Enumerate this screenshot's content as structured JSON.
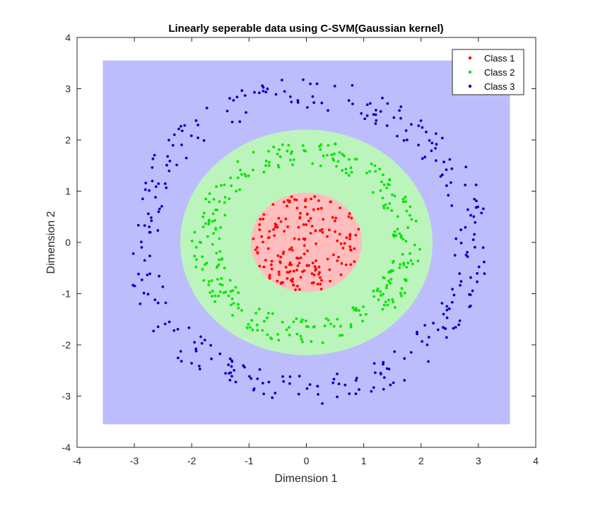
{
  "chart_data": {
    "type": "scatter",
    "title": "Linearly seperable data using C-SVM(Gaussian kernel)",
    "xlabel": "Dimension 1",
    "ylabel": "Dimension 2",
    "xlim": [
      -4,
      4
    ],
    "ylim": [
      -4,
      4
    ],
    "xticks": [
      "-4",
      "-3",
      "-2",
      "-1",
      "0",
      "1",
      "2",
      "3",
      "4"
    ],
    "yticks": [
      "-4",
      "-3",
      "-2",
      "-1",
      "0",
      "1",
      "2",
      "3",
      "4"
    ],
    "grid": false,
    "legend_position": "top-right",
    "decision_regions": {
      "grid_extent_x": [
        -3.55,
        3.55
      ],
      "grid_extent_y": [
        -3.55,
        3.55
      ],
      "class1_region_radius": 0.97,
      "class2_region_radius": 2.2,
      "colors": {
        "class1": "#ffbdbd",
        "class2": "#bcf5bc",
        "class3": "#bdbdfd"
      }
    },
    "series": [
      {
        "name": "Class 1",
        "color": "#ff0000",
        "ring_radius": [
          0.0,
          0.95
        ],
        "count": 180
      },
      {
        "name": "Class 2",
        "color": "#00e600",
        "ring_radius": [
          1.5,
          2.0
        ],
        "count": 300
      },
      {
        "name": "Class 3",
        "color": "#0000cc",
        "ring_radius": [
          2.6,
          3.2
        ],
        "count": 300
      }
    ]
  }
}
